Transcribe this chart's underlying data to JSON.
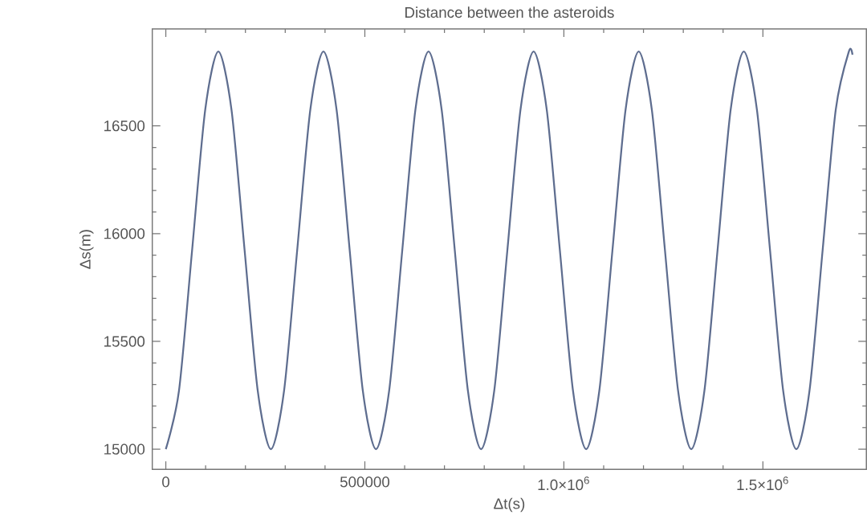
{
  "chart_data": {
    "type": "line",
    "title": "Distance between the asteroids",
    "xlabel": "Δt(s)",
    "ylabel": "Δs(m)",
    "x": [
      0,
      33000,
      66000,
      99000,
      132000,
      165000,
      198000,
      231000,
      264000,
      297000,
      330000,
      363000,
      396000,
      429000,
      462000,
      495000,
      528000,
      561000,
      594000,
      627000,
      660000,
      693000,
      726000,
      759000,
      792000,
      825000,
      858000,
      891000,
      924000,
      957000,
      990000,
      1023000,
      1056000,
      1089000,
      1122000,
      1155000,
      1188000,
      1221000,
      1254000,
      1287000,
      1320000,
      1353000,
      1386000,
      1419000,
      1452000,
      1485000,
      1518000,
      1551000,
      1584000,
      1617000,
      1650000,
      1683000,
      1716000,
      1725000
    ],
    "series": [
      {
        "color": "#5e6d8f",
        "values": [
          15000,
          15270,
          15922,
          16575,
          16845,
          16575,
          15922,
          15270,
          15000,
          15270,
          15922,
          16575,
          16845,
          16575,
          15922,
          15270,
          15000,
          15270,
          15922,
          16575,
          16845,
          16575,
          15922,
          15270,
          15000,
          15270,
          15922,
          16575,
          16845,
          16575,
          15922,
          15270,
          15000,
          15270,
          15922,
          16575,
          16845,
          16575,
          15922,
          15270,
          15000,
          15270,
          15922,
          16575,
          16845,
          16575,
          15922,
          15270,
          15000,
          15270,
          15922,
          16575,
          16845,
          16830
        ]
      }
    ],
    "xlim": [
      -34000,
      1760000
    ],
    "ylim": [
      14906,
      16950
    ],
    "xticks": [
      0,
      500000,
      {
        "value": 1000000,
        "label": "1.0×10$^{6}$"
      },
      {
        "value": 1500000,
        "label": "1.5×10$^{6}$"
      }
    ],
    "yticks": [
      15000,
      15500,
      16000,
      16500
    ],
    "grid": false,
    "marker": "none",
    "line_style": "solid"
  }
}
